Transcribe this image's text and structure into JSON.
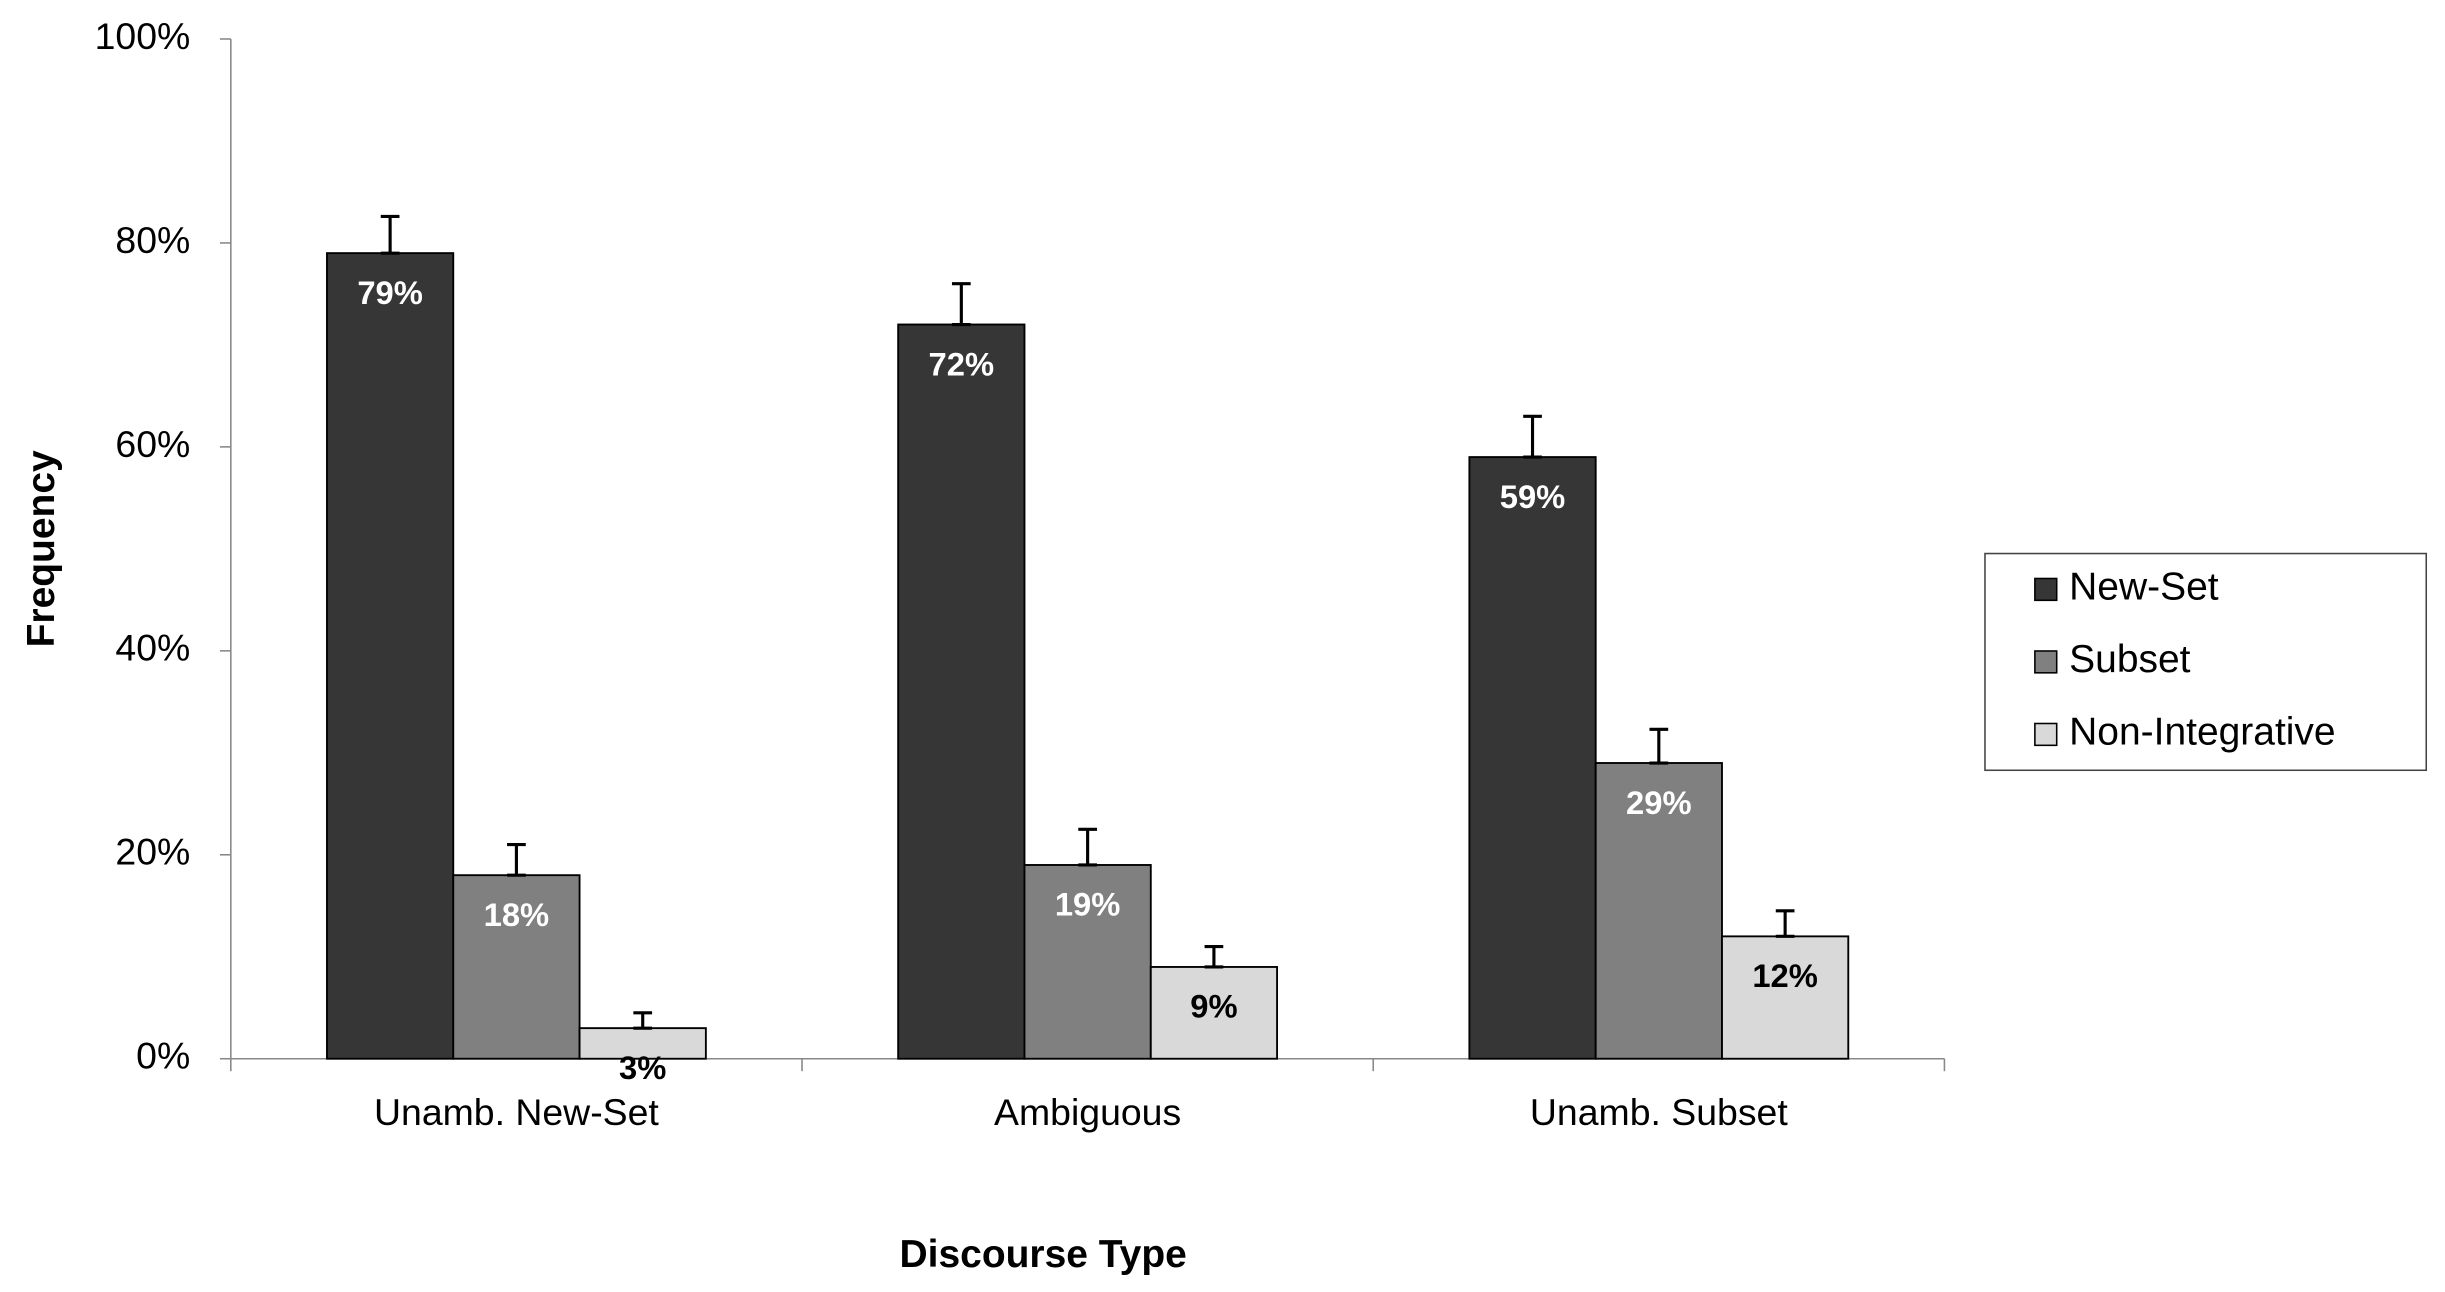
{
  "chart_data": {
    "type": "bar",
    "x_label": "Discourse Type",
    "y_label": "Frequency",
    "categories": [
      "Unamb. New-Set",
      "Ambiguous",
      "Unamb. Subset"
    ],
    "series": [
      {
        "name": "New-Set",
        "color": "#363636",
        "values": [
          79,
          72,
          59
        ],
        "value_labels": [
          "79%",
          "72%",
          "59%"
        ],
        "errors": [
          3.6,
          4,
          4
        ],
        "label_color": "#ffffff"
      },
      {
        "name": "Subset",
        "color": "#808080",
        "values": [
          18,
          19,
          29
        ],
        "value_labels": [
          "18%",
          "19%",
          "29%"
        ],
        "errors": [
          3,
          3.5,
          3.3
        ],
        "label_color": "#ffffff"
      },
      {
        "name": "Non-Integrative",
        "color": "#d9d9d9",
        "values": [
          3,
          9,
          12
        ],
        "value_labels": [
          "3%",
          "9%",
          "12%"
        ],
        "errors": [
          1.5,
          2,
          2.5
        ],
        "label_color": "#000000"
      }
    ],
    "ylim": [
      0,
      100
    ],
    "yticks": [
      {
        "value": 0,
        "label": "0%"
      },
      {
        "value": 20,
        "label": "20%"
      },
      {
        "value": 40,
        "label": "40%"
      },
      {
        "value": 60,
        "label": "60%"
      },
      {
        "value": 80,
        "label": "80%"
      },
      {
        "value": 100,
        "label": "100%"
      }
    ],
    "grid": false,
    "legend": "right"
  }
}
